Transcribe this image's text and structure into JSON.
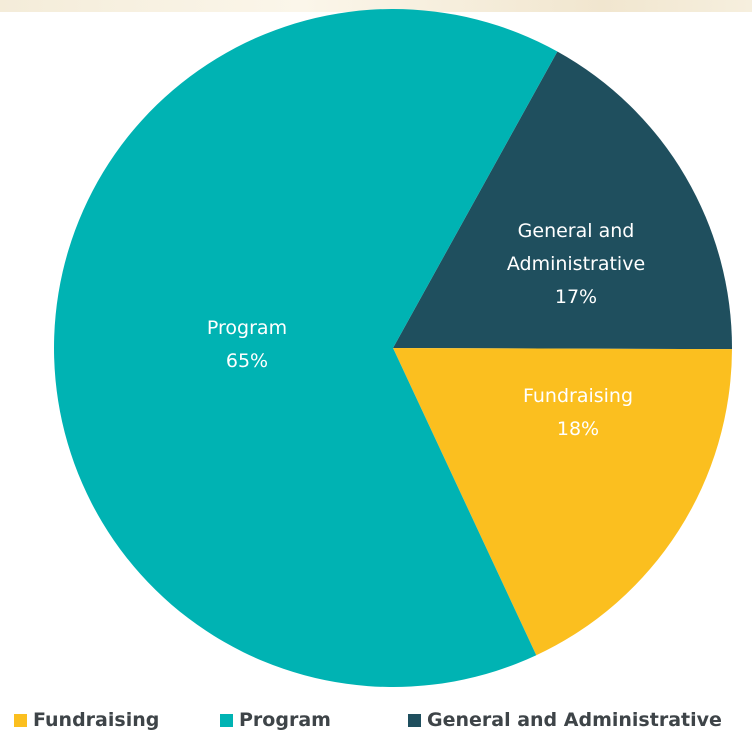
{
  "colors": {
    "fundraising": "#fbbf1f",
    "program": "#00b3b3",
    "general_admin": "#1f4f5e",
    "label_text": "#ffffff",
    "legend_text": "#3e4448"
  },
  "chart_data": {
    "type": "pie",
    "title": "",
    "slices": [
      {
        "name": "General and Administrative",
        "value": 17,
        "label_lines": [
          "General and",
          "Administrative",
          "17%"
        ]
      },
      {
        "name": "Fundraising",
        "value": 18,
        "label_lines": [
          "Fundraising",
          "18%"
        ]
      },
      {
        "name": "Program",
        "value": 65,
        "label_lines": [
          "Program",
          "65%"
        ]
      }
    ],
    "legend": [
      "Fundraising",
      "Program",
      "General and Administrative"
    ],
    "legend_position": "bottom"
  }
}
